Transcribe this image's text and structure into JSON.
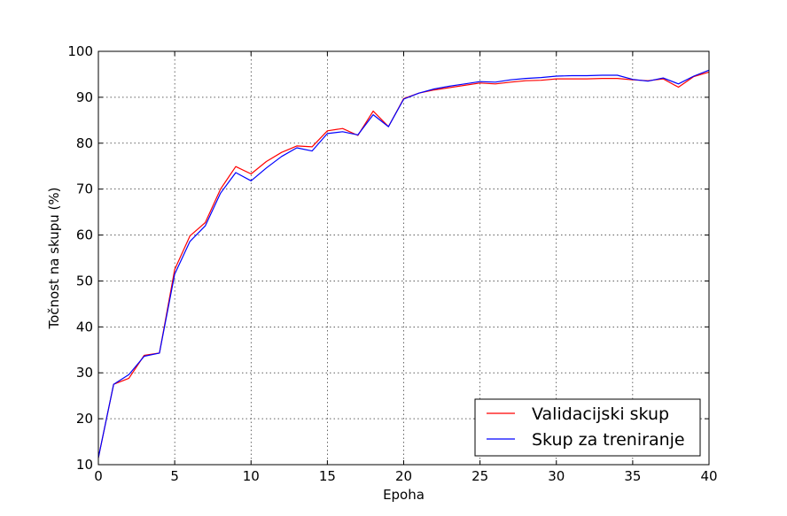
{
  "chart_data": {
    "type": "line",
    "title": "",
    "xlabel": "Epoha",
    "ylabel": "Točnost na skupu (%)",
    "xlim": [
      0,
      40
    ],
    "ylim": [
      10,
      100
    ],
    "xticks": [
      0,
      5,
      10,
      15,
      20,
      25,
      30,
      35,
      40
    ],
    "yticks": [
      10,
      20,
      30,
      40,
      50,
      60,
      70,
      80,
      90,
      100
    ],
    "grid": true,
    "legend_position": "bottom-right",
    "x": [
      0,
      1,
      2,
      3,
      4,
      5,
      6,
      7,
      8,
      9,
      10,
      11,
      12,
      13,
      14,
      15,
      16,
      17,
      18,
      19,
      20,
      21,
      22,
      23,
      24,
      25,
      26,
      27,
      28,
      29,
      30,
      31,
      32,
      33,
      34,
      35,
      36,
      37,
      38,
      39,
      40
    ],
    "series": [
      {
        "name": "Validacijski skup",
        "color": "#ff0000",
        "values": [
          11.5,
          27.5,
          28.8,
          33.8,
          34.3,
          52.5,
          59.8,
          62.7,
          70.0,
          74.9,
          73.3,
          76.0,
          78.0,
          79.4,
          79.2,
          82.7,
          83.2,
          81.7,
          87.0,
          83.6,
          89.7,
          90.9,
          91.6,
          92.1,
          92.6,
          93.1,
          92.9,
          93.3,
          93.6,
          93.7,
          94.0,
          94.0,
          94.0,
          94.1,
          94.1,
          93.8,
          93.6,
          94.0,
          92.2,
          94.5,
          95.5
        ]
      },
      {
        "name": "Skup za treniranje",
        "color": "#0000ff",
        "values": [
          11.5,
          27.5,
          29.6,
          33.6,
          34.3,
          51.5,
          58.6,
          62.0,
          69.1,
          73.6,
          71.8,
          74.6,
          77.1,
          79.0,
          78.3,
          82.1,
          82.5,
          81.8,
          86.2,
          83.6,
          89.6,
          90.9,
          91.8,
          92.4,
          92.9,
          93.4,
          93.3,
          93.8,
          94.1,
          94.3,
          94.6,
          94.7,
          94.7,
          94.8,
          94.8,
          93.9,
          93.5,
          94.2,
          92.9,
          94.6,
          95.9
        ]
      }
    ]
  }
}
